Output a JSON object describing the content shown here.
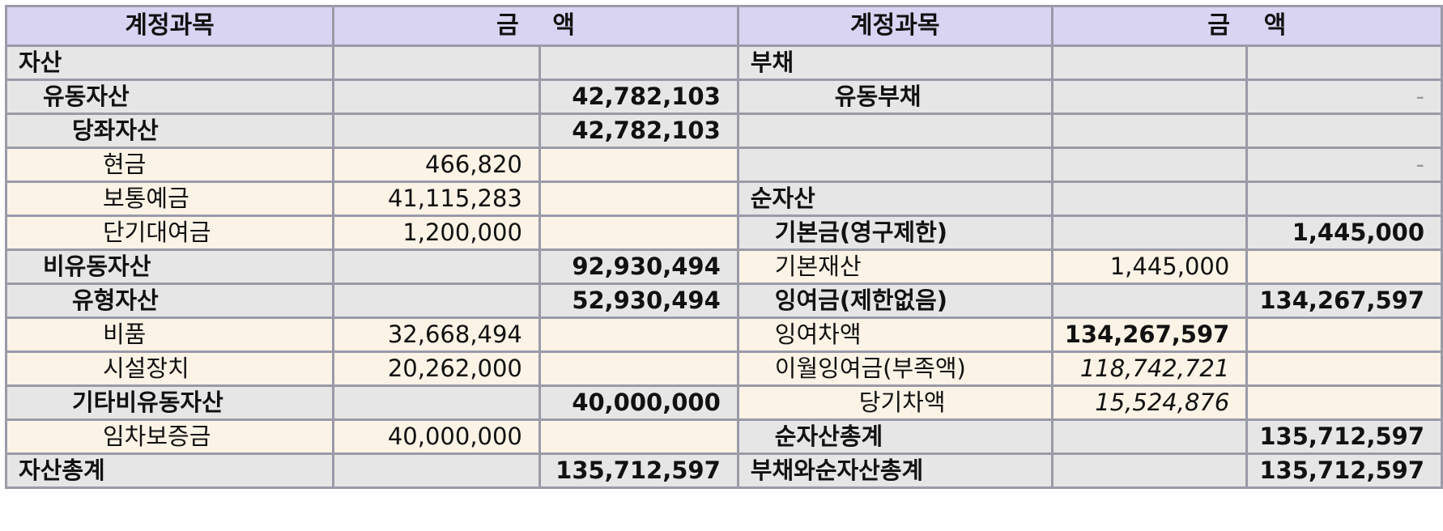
{
  "header": {
    "left_account": "계정과목",
    "left_amount": "금    액",
    "right_account": "계정과목",
    "right_amount": "금    액"
  },
  "rows": [
    {
      "l_name": "자산",
      "l_sub": "",
      "l_total": "",
      "r_name": "부채",
      "r_sub": "",
      "r_total": ""
    },
    {
      "l_name": "유동자산",
      "l_sub": "",
      "l_total": "42,782,103",
      "r_name": "유동부채",
      "r_sub": "",
      "r_total": "-"
    },
    {
      "l_name": "당좌자산",
      "l_sub": "",
      "l_total": "42,782,103",
      "r_name": "",
      "r_sub": "",
      "r_total": ""
    },
    {
      "l_name": "현금",
      "l_sub": "466,820",
      "l_total": "",
      "r_name": "",
      "r_sub": "",
      "r_total": "-"
    },
    {
      "l_name": "보통예금",
      "l_sub": "41,115,283",
      "l_total": "",
      "r_name": "순자산",
      "r_sub": "",
      "r_total": ""
    },
    {
      "l_name": "단기대여금",
      "l_sub": "1,200,000",
      "l_total": "",
      "r_name": "기본금(영구제한)",
      "r_sub": "",
      "r_total": "1,445,000"
    },
    {
      "l_name": "비유동자산",
      "l_sub": "",
      "l_total": "92,930,494",
      "r_name": "기본재산",
      "r_sub": "1,445,000",
      "r_total": ""
    },
    {
      "l_name": "유형자산",
      "l_sub": "",
      "l_total": "52,930,494",
      "r_name": "잉여금(제한없음)",
      "r_sub": "",
      "r_total": "134,267,597"
    },
    {
      "l_name": "비품",
      "l_sub": "32,668,494",
      "l_total": "",
      "r_name": "잉여차액",
      "r_sub": "134,267,597",
      "r_total": ""
    },
    {
      "l_name": "시설장치",
      "l_sub": "20,262,000",
      "l_total": "",
      "r_name": "이월잉여금(부족액)",
      "r_sub": "118,742,721",
      "r_total": ""
    },
    {
      "l_name": "기타비유동자산",
      "l_sub": "",
      "l_total": "40,000,000",
      "r_name": "당기차액",
      "r_sub": "15,524,876",
      "r_total": ""
    },
    {
      "l_name": "임차보증금",
      "l_sub": "40,000,000",
      "l_total": "",
      "r_name": "순자산총계",
      "r_sub": "",
      "r_total": "135,712,597"
    },
    {
      "l_name": "자산총계",
      "l_sub": "",
      "l_total": "135,712,597",
      "r_name": "부채와순자산총계",
      "r_sub": "",
      "r_total": "135,712,597"
    }
  ]
}
